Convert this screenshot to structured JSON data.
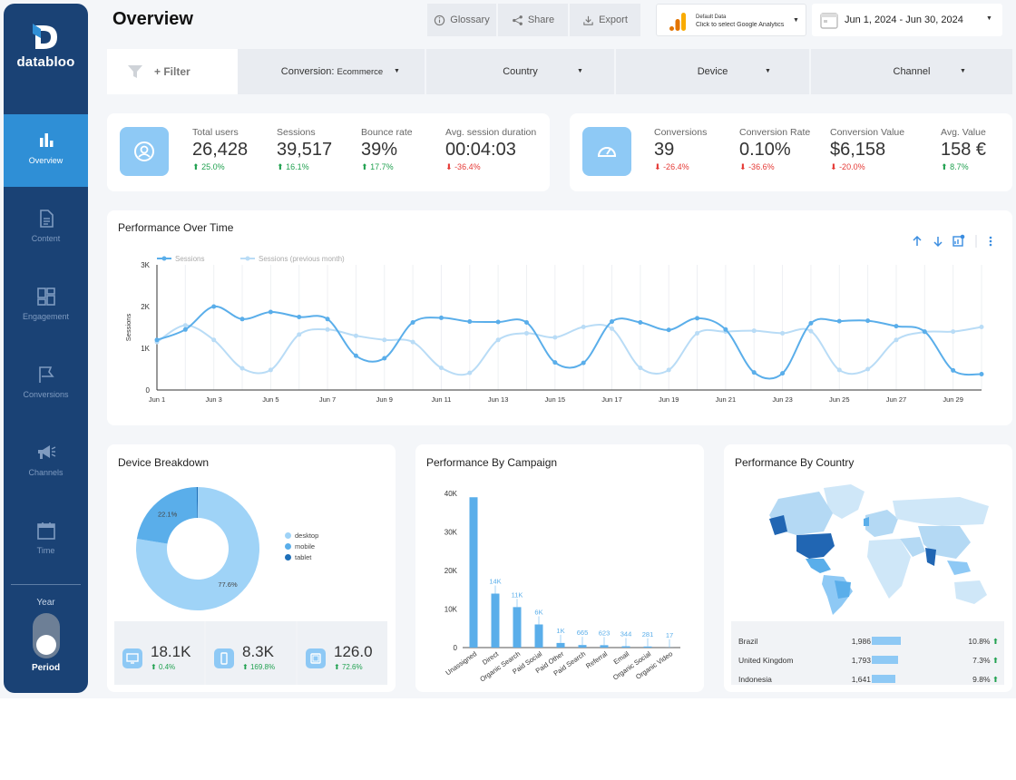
{
  "app": {
    "title": "Overview",
    "brand": "databloo"
  },
  "sidebar": {
    "items": [
      {
        "label": "Overview",
        "icon": "bar-chart-icon",
        "active": true
      },
      {
        "label": "Content",
        "icon": "document-icon",
        "active": false
      },
      {
        "label": "Engagement",
        "icon": "dashboard-icon",
        "active": false
      },
      {
        "label": "Conversions",
        "icon": "flag-icon",
        "active": false
      },
      {
        "label": "Channels",
        "icon": "megaphone-icon",
        "active": false
      },
      {
        "label": "Time",
        "icon": "calendar-icon",
        "active": false
      }
    ],
    "year_label": "Year",
    "period_label": "Period"
  },
  "header": {
    "glossary_label": "Glossary",
    "share_label": "Share",
    "export_label": "Export",
    "datasource_line1": "Default Data",
    "datasource_line2": "Click to select Google Analytics",
    "date_range": "Jun 1, 2024 - Jun 30, 2024"
  },
  "filters": {
    "filter_label": "+ Filter",
    "conversion_key": "Conversion: ",
    "conversion_value": "Ecommerce",
    "country": "Country",
    "device": "Device",
    "channel": "Channel"
  },
  "kpis_traffic": [
    {
      "label": "Total users",
      "value": "26,428",
      "delta": "25.0%",
      "dir": "up"
    },
    {
      "label": "Sessions",
      "value": "39,517",
      "delta": "16.1%",
      "dir": "up"
    },
    {
      "label": "Bounce rate",
      "value": "39%",
      "delta": "17.7%",
      "dir": "up"
    },
    {
      "label": "Avg. session duration",
      "value": "00:04:03",
      "delta": "-36.4%",
      "dir": "down"
    }
  ],
  "kpis_conversion": [
    {
      "label": "Conversions",
      "value": "39",
      "delta": "-26.4%",
      "dir": "down"
    },
    {
      "label": "Conversion Rate",
      "value": "0.10%",
      "delta": "-36.6%",
      "dir": "down"
    },
    {
      "label": "Conversion Value",
      "value": "$6,158",
      "delta": "-20.0%",
      "dir": "down"
    },
    {
      "label": "Avg. Value",
      "value": "158 €",
      "delta": "8.7%",
      "dir": "up"
    }
  ],
  "perf_over_time": {
    "title": "Performance Over Time",
    "chart_data": {
      "type": "line",
      "ylabel": "Sessions",
      "ylim": [
        0,
        3000
      ],
      "yticks": [
        "0",
        "1K",
        "2K",
        "3K"
      ],
      "xticks": [
        "Jun 1",
        "Jun 3",
        "Jun 5",
        "Jun 7",
        "Jun 9",
        "Jun 11",
        "Jun 13",
        "Jun 15",
        "Jun 17",
        "Jun 19",
        "Jun 21",
        "Jun 23",
        "Jun 25",
        "Jun 27",
        "Jun 29"
      ],
      "x": [
        1,
        2,
        3,
        4,
        5,
        6,
        7,
        8,
        9,
        10,
        11,
        12,
        13,
        14,
        15,
        16,
        17,
        18,
        19,
        20,
        21,
        22,
        23,
        24,
        25,
        26,
        27,
        28,
        29,
        30
      ],
      "series": [
        {
          "name": "Sessions",
          "color": "#5aaeea",
          "values": [
            1200,
            1450,
            2000,
            1700,
            1870,
            1750,
            1700,
            820,
            760,
            1620,
            1730,
            1640,
            1630,
            1620,
            660,
            650,
            1640,
            1620,
            1440,
            1720,
            1450,
            420,
            400,
            1600,
            1650,
            1660,
            1530,
            1400,
            470,
            380
          ]
        },
        {
          "name": "Sessions (previous month)",
          "color": "#b9dcf6",
          "values": [
            1150,
            1550,
            1200,
            520,
            480,
            1330,
            1450,
            1300,
            1200,
            1150,
            530,
            410,
            1200,
            1360,
            1260,
            1510,
            1470,
            530,
            480,
            1360,
            1400,
            1420,
            1360,
            1410,
            480,
            500,
            1200,
            1390,
            1400,
            1510
          ]
        }
      ]
    }
  },
  "device_breakdown": {
    "title": "Device Breakdown",
    "chart_data": {
      "type": "pie",
      "categories": [
        "desktop",
        "mobile",
        "tablet"
      ],
      "values": [
        77.6,
        22.1,
        0.3
      ],
      "labels": [
        "77.6%",
        "22.1%",
        ""
      ],
      "colors": [
        "#9fd3f7",
        "#5aaeea",
        "#1e6fb8"
      ]
    },
    "stats": [
      {
        "icon": "desktop-icon",
        "value": "18.1K",
        "delta": "0.4%"
      },
      {
        "icon": "mobile-icon",
        "value": "8.3K",
        "delta": "169.8%"
      },
      {
        "icon": "tablet-icon",
        "value": "126.0",
        "delta": "72.6%"
      }
    ]
  },
  "campaign": {
    "title": "Performance By Campaign",
    "chart_data": {
      "type": "bar",
      "categories": [
        "Unassigned",
        "Direct",
        "Organic Search",
        "Paid Social",
        "Paid Other",
        "Paid Search",
        "Referral",
        "Email",
        "Organic Social",
        "Organic Video"
      ],
      "values": [
        39000,
        14000,
        10500,
        6000,
        1200,
        665,
        623,
        344,
        281,
        17
      ],
      "labels": [
        "",
        "14K",
        "11K",
        "6K",
        "1K",
        "665",
        "623",
        "344",
        "281",
        "17"
      ],
      "ylim": [
        0,
        40000
      ],
      "yticks": [
        "0",
        "10K",
        "20K",
        "30K",
        "40K"
      ]
    }
  },
  "country": {
    "title": "Performance By Country",
    "rows": [
      {
        "name": "Brazil",
        "value": "1,986",
        "bar": 1986,
        "pct": "10.8%"
      },
      {
        "name": "United Kingdom",
        "value": "1,793",
        "bar": 1793,
        "pct": "7.3%"
      },
      {
        "name": "Indonesia",
        "value": "1,641",
        "bar": 1641,
        "pct": "9.8%"
      }
    ]
  }
}
